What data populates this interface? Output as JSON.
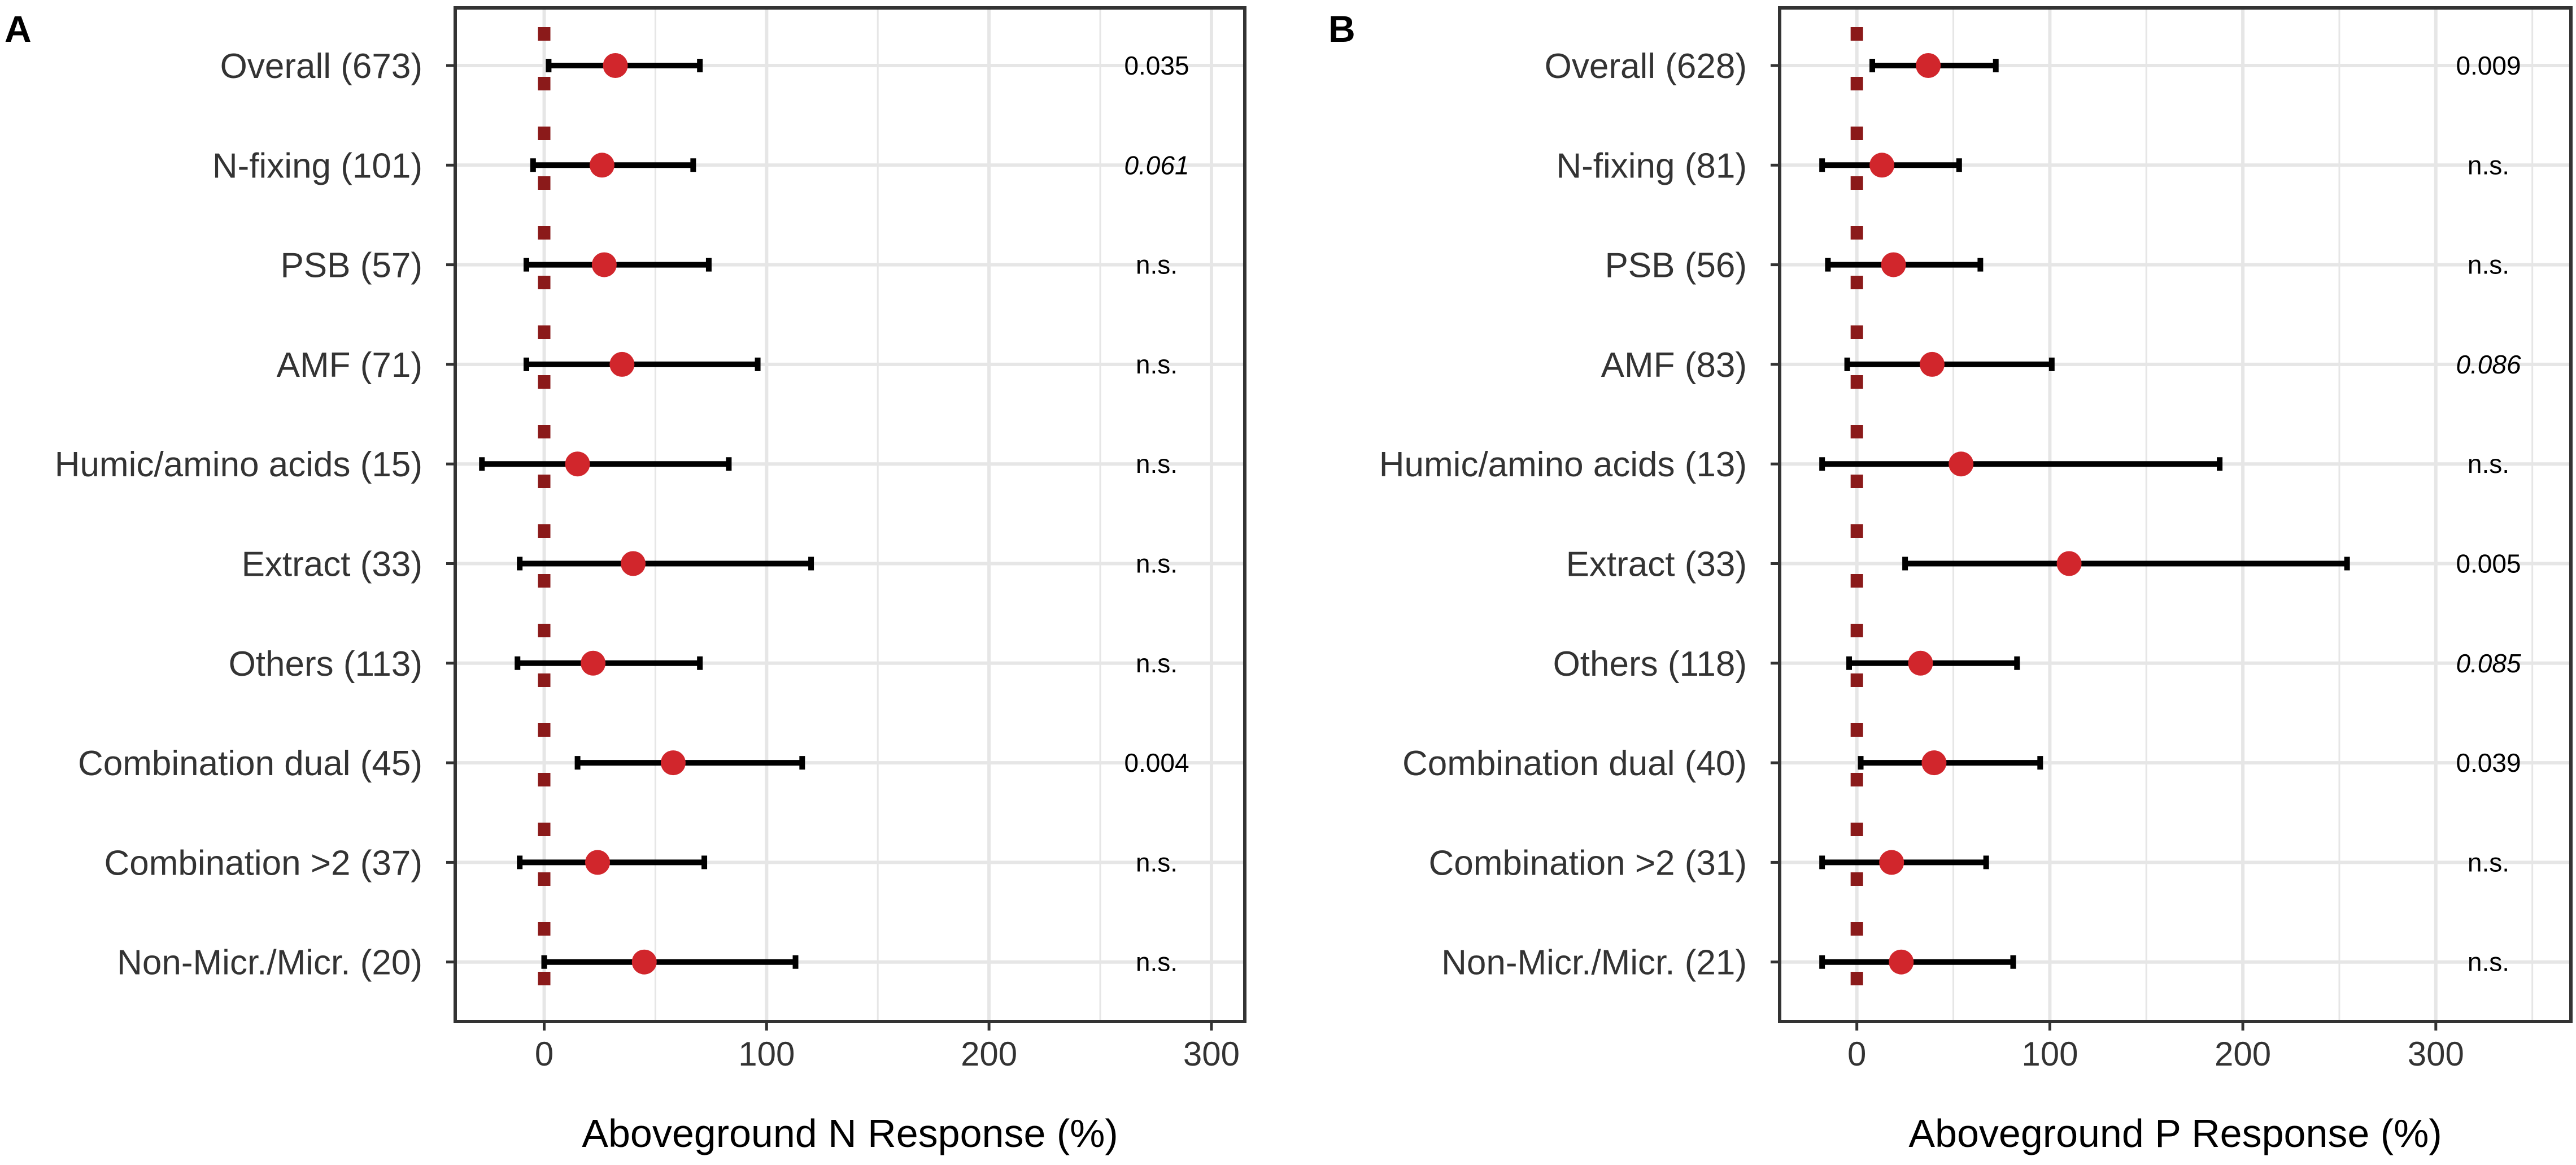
{
  "chart_data": [
    {
      "type": "forest",
      "panel_label": "A",
      "xlabel": "Aboveground N Response (%)",
      "xlim": [
        -40,
        315
      ],
      "xticks": [
        0,
        100,
        200,
        300
      ],
      "minor_gridlines": [
        50,
        150,
        250
      ],
      "reference_line_x": 0,
      "rows": [
        {
          "label": "Overall (673)",
          "estimate": 32,
          "ci_low": 2,
          "ci_high": 70,
          "p_label": "0.035",
          "p_italic": false
        },
        {
          "label": "N-fixing (101)",
          "estimate": 26,
          "ci_low": -5,
          "ci_high": 67,
          "p_label": "0.061",
          "p_italic": true
        },
        {
          "label": "PSB (57)",
          "estimate": 27,
          "ci_low": -8,
          "ci_high": 74,
          "p_label": "n.s.",
          "p_italic": false
        },
        {
          "label": "AMF (71)",
          "estimate": 35,
          "ci_low": -8,
          "ci_high": 96,
          "p_label": "n.s.",
          "p_italic": false
        },
        {
          "label": "Humic/amino acids (15)",
          "estimate": 15,
          "ci_low": -28,
          "ci_high": 83,
          "p_label": "n.s.",
          "p_italic": false
        },
        {
          "label": "Extract (33)",
          "estimate": 40,
          "ci_low": -11,
          "ci_high": 120,
          "p_label": "n.s.",
          "p_italic": false
        },
        {
          "label": "Others (113)",
          "estimate": 22,
          "ci_low": -12,
          "ci_high": 70,
          "p_label": "n.s.",
          "p_italic": false
        },
        {
          "label": "Combination dual (45)",
          "estimate": 58,
          "ci_low": 15,
          "ci_high": 116,
          "p_label": "0.004",
          "p_italic": false
        },
        {
          "label": "Combination >2 (37)",
          "estimate": 24,
          "ci_low": -11,
          "ci_high": 72,
          "p_label": "n.s.",
          "p_italic": false
        },
        {
          "label": "Non-Micr./Micr. (20)",
          "estimate": 45,
          "ci_low": 0,
          "ci_high": 113,
          "p_label": "n.s.",
          "p_italic": false
        }
      ]
    },
    {
      "type": "forest",
      "panel_label": "B",
      "xlabel": "Aboveground P Response (%)",
      "xlim": [
        -40,
        370
      ],
      "xticks": [
        0,
        100,
        200,
        300
      ],
      "minor_gridlines": [
        50,
        150,
        250,
        350
      ],
      "reference_line_x": 0,
      "rows": [
        {
          "label": "Overall (628)",
          "estimate": 37,
          "ci_low": 8,
          "ci_high": 72,
          "p_label": "0.009",
          "p_italic": false
        },
        {
          "label": "N-fixing (81)",
          "estimate": 13,
          "ci_low": -18,
          "ci_high": 53,
          "p_label": "n.s.",
          "p_italic": false
        },
        {
          "label": "PSB (56)",
          "estimate": 19,
          "ci_low": -15,
          "ci_high": 64,
          "p_label": "n.s.",
          "p_italic": false
        },
        {
          "label": "AMF (83)",
          "estimate": 39,
          "ci_low": -5,
          "ci_high": 101,
          "p_label": "0.086",
          "p_italic": true
        },
        {
          "label": "Humic/amino acids (13)",
          "estimate": 54,
          "ci_low": -18,
          "ci_high": 188,
          "p_label": "n.s.",
          "p_italic": false
        },
        {
          "label": "Extract (33)",
          "estimate": 110,
          "ci_low": 25,
          "ci_high": 254,
          "p_label": "0.005",
          "p_italic": false
        },
        {
          "label": "Others (118)",
          "estimate": 33,
          "ci_low": -4,
          "ci_high": 83,
          "p_label": "0.085",
          "p_italic": true
        },
        {
          "label": "Combination dual (40)",
          "estimate": 40,
          "ci_low": 2,
          "ci_high": 95,
          "p_label": "0.039",
          "p_italic": false
        },
        {
          "label": "Combination >2 (31)",
          "estimate": 18,
          "ci_low": -18,
          "ci_high": 67,
          "p_label": "n.s.",
          "p_italic": false
        },
        {
          "label": "Non-Micr./Micr. (21)",
          "estimate": 23,
          "ci_low": -18,
          "ci_high": 81,
          "p_label": "n.s.",
          "p_italic": false
        }
      ]
    }
  ],
  "colors": {
    "point": "#D1262C",
    "ci_bar": "#000000",
    "reference_line": "#8B1A1A",
    "gridline": "#E6E6E6",
    "panel_border": "#333333",
    "text": "#333333"
  }
}
